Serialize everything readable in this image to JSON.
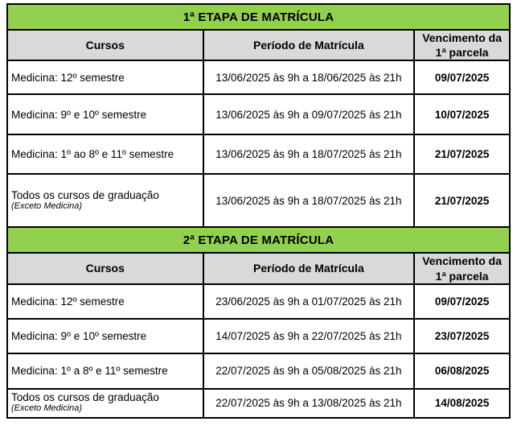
{
  "colors": {
    "section_header_bg": "#92d050",
    "column_header_bg": "#d9d9d9",
    "border": "#000000",
    "text": "#000000"
  },
  "sections": [
    {
      "title": "1ª ETAPA DE MATRÍCULA",
      "columns": [
        "Cursos",
        "Período de Matrícula",
        "Vencimento da 1ª parcela"
      ],
      "rows": [
        {
          "curso": "Medicina: 12º semestre",
          "periodo": "13/06/2025 às 9h a 18/06/2025 às 21h",
          "vencimento": "09/07/2025"
        },
        {
          "curso": "Medicina: 9º e 10º semestre",
          "periodo": "13/06/2025 às 9h a 09/07/2025 às 21h",
          "vencimento": "10/07/2025"
        },
        {
          "curso": "Medicina: 1º ao 8º e 11º semestre",
          "periodo": "13/06/2025 às 9h a 18/07/2025 às 21h",
          "vencimento": "21/07/2025"
        },
        {
          "curso": "Todos os cursos de graduação",
          "nota": "(Exceto Medicina)",
          "periodo": "13/06/2025 às 9h a 18/07/2025 às 21h",
          "vencimento": "21/07/2025"
        }
      ]
    },
    {
      "title": "2ª ETAPA DE MATRÍCULA",
      "columns": [
        "Cursos",
        "Período de Matrícula",
        "Vencimento da 1ª parcela"
      ],
      "rows": [
        {
          "curso": "Medicina: 12º semestre",
          "periodo": "23/06/2025 às 9h a 01/07/2025 às 21h",
          "vencimento": "09/07/2025"
        },
        {
          "curso": "Medicina: 9º e 10º semestre",
          "periodo": "14/07/2025 às 9h a 22/07/2025 às 21h",
          "vencimento": "23/07/2025"
        },
        {
          "curso": "Medicina: 1º a 8º e 11º semestre",
          "periodo": "22/07/2025 às 9h a 05/08/2025 às 21h",
          "vencimento": "06/08/2025"
        },
        {
          "curso": "Todos os cursos de graduação",
          "nota": "(Exceto Medicina)",
          "periodo": "22/07/2025 às 9h a 13/08/2025 às 21h",
          "vencimento": "14/08/2025"
        }
      ]
    }
  ]
}
